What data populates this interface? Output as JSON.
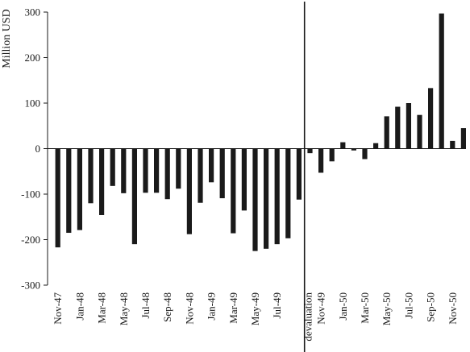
{
  "chart_data": {
    "type": "bar",
    "ylabel": "Million USD",
    "xlabel": "",
    "ylim": [
      -300,
      300
    ],
    "yticks": [
      300,
      200,
      100,
      0,
      -100,
      -200,
      -300
    ],
    "grid": false,
    "bar_color": "#1a1a1a",
    "axis_color": "#1a1a1a",
    "marker": {
      "label": "devaluation",
      "category": "Oct-49"
    },
    "x_tick_labels": [
      "Nov-47",
      "Jan-48",
      "Mar-48",
      "May-48",
      "Jul-48",
      "Sep-48",
      "Nov-48",
      "Jan-49",
      "Mar-49",
      "May-49",
      "Jul-49",
      "devaluation",
      "Nov-49",
      "Jan-50",
      "Mar-50",
      "May-50",
      "Jul-50",
      "Sep-50",
      "Nov-50"
    ],
    "categories": [
      "Nov-47",
      "Dec-47",
      "Jan-48",
      "Feb-48",
      "Mar-48",
      "Apr-48",
      "May-48",
      "Jun-48",
      "Jul-48",
      "Aug-48",
      "Sep-48",
      "Oct-48",
      "Nov-48",
      "Dec-48",
      "Jan-49",
      "Feb-49",
      "Mar-49",
      "Apr-49",
      "May-49",
      "Jun-49",
      "Jul-49",
      "Aug-49",
      "Sep-49",
      "Oct-49",
      "Nov-49",
      "Dec-49",
      "Jan-50",
      "Feb-50",
      "Mar-50",
      "Apr-50",
      "May-50",
      "Jun-50",
      "Jul-50",
      "Aug-50",
      "Sep-50",
      "Oct-50",
      "Nov-50",
      "Dec-50"
    ],
    "values": [
      -217,
      -185,
      -179,
      -120,
      -146,
      -82,
      -98,
      -210,
      -97,
      -97,
      -111,
      -88,
      -188,
      -119,
      -74,
      -109,
      -186,
      -136,
      -225,
      -220,
      -210,
      -197,
      -112,
      -10,
      -53,
      -28,
      14,
      -4,
      -23,
      12,
      71,
      92,
      100,
      74,
      133,
      297,
      17,
      45
    ]
  }
}
